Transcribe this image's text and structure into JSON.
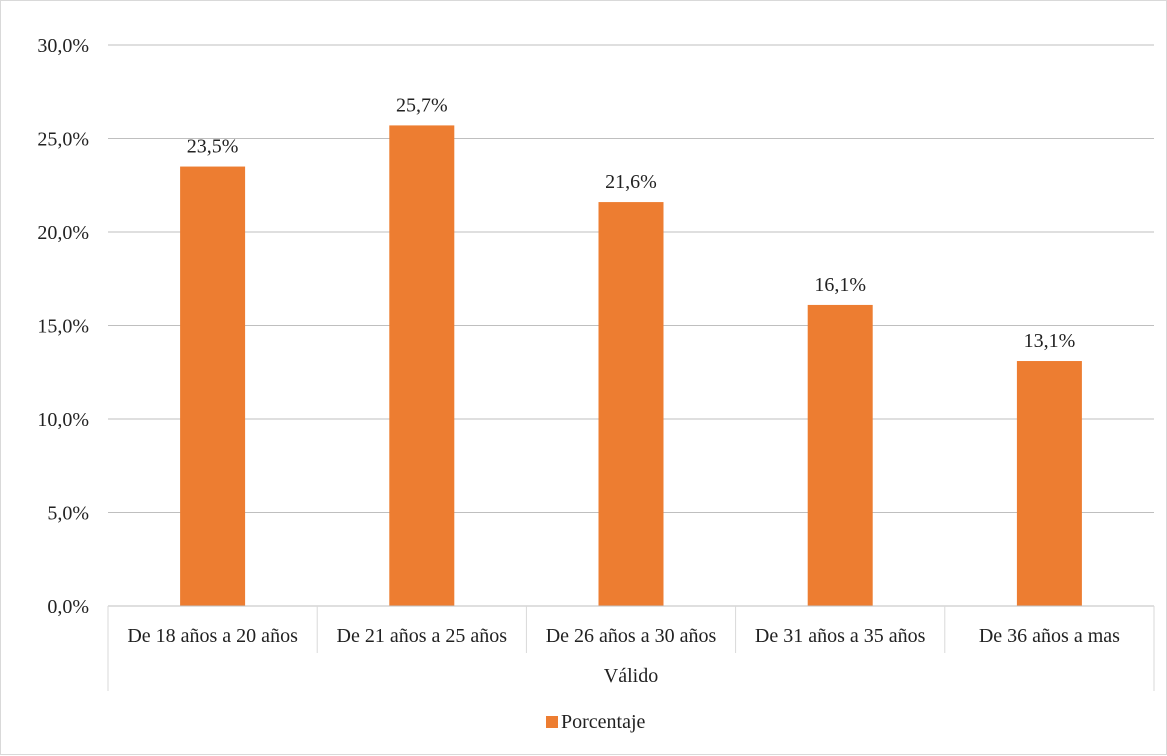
{
  "chart_data": {
    "type": "bar",
    "categories": [
      "De 18 años a 20 años",
      "De 21 años a 25 años",
      "De 26 años a 30 años",
      "De 31 años a 35 años",
      "De 36 años a mas"
    ],
    "group_label": "Válido",
    "series": [
      {
        "name": "Porcentaje",
        "values": [
          23.5,
          25.7,
          21.6,
          16.1,
          13.1
        ],
        "color": "#ED7D31"
      }
    ],
    "data_labels": [
      "23,5%",
      "25,7%",
      "21,6%",
      "16,1%",
      "13,1%"
    ],
    "y_ticks": [
      0,
      5,
      10,
      15,
      20,
      25,
      30
    ],
    "y_tick_labels": [
      "0,0%",
      "5,0%",
      "10,0%",
      "15,0%",
      "20,0%",
      "25,0%",
      "30,0%"
    ],
    "ylim": [
      0,
      30
    ],
    "grid": true,
    "legend_position": "bottom",
    "title": "",
    "xlabel": "",
    "ylabel": ""
  }
}
